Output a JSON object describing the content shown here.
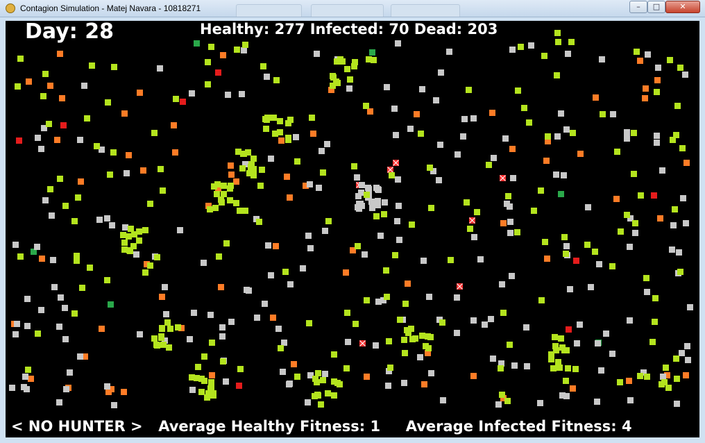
{
  "window": {
    "title": "Contagion Simulation - Matej Navara - 10818271",
    "controls": {
      "minimize": "–",
      "maximize": "□",
      "close": "✕"
    }
  },
  "hud": {
    "day_label": "Day:",
    "day_value": "28",
    "healthy_label": "Healthy:",
    "healthy_value": "277",
    "infected_label": "Infected:",
    "infected_value": "70",
    "dead_label": "Dead:",
    "dead_value": "203",
    "hunter_status": "< NO HUNTER >",
    "avg_healthy_label": "Average Healthy Fitness:",
    "avg_healthy_value": "1",
    "avg_infected_label": "Average Infected Fitness:",
    "avg_infected_value": "4"
  },
  "colors": {
    "healthy": "#b4e41e",
    "infected": "#ff7c26",
    "dead": "#c8c8c8",
    "critical": "#e51c1c",
    "hunter": "#2aa84a",
    "background": "#000000"
  },
  "legend_icons": [
    "healthy-agent",
    "infected-agent",
    "dead-agent",
    "critical-agent",
    "hunter-agent",
    "death-marker-icon"
  ]
}
